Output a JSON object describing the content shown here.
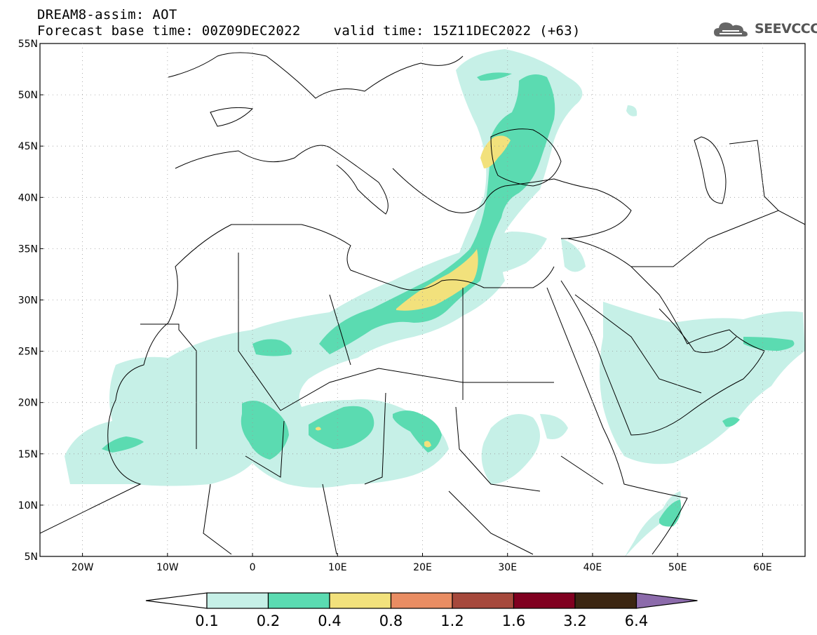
{
  "title": {
    "line1": "DREAM8-assim: AOT",
    "line2": "Forecast base time: 00Z09DEC2022    valid time: 15Z11DEC2022 (+63)"
  },
  "logo": {
    "text": "SEEVCCC",
    "icon": "cloud-icon"
  },
  "map": {
    "lon_range": [
      -25,
      65
    ],
    "lat_range": [
      5,
      55
    ],
    "lat_labels": [
      "55N",
      "50N",
      "45N",
      "40N",
      "35N",
      "30N",
      "25N",
      "20N",
      "15N",
      "10N",
      "5N"
    ],
    "lat_values": [
      55,
      50,
      45,
      40,
      35,
      30,
      25,
      20,
      15,
      10,
      5
    ],
    "lon_labels": [
      "20W",
      "10W",
      "0",
      "10E",
      "20E",
      "30E",
      "40E",
      "50E",
      "60E"
    ],
    "lon_values": [
      -20,
      -10,
      0,
      10,
      20,
      30,
      40,
      50,
      60
    ],
    "grid": "dotted",
    "coastline_color": "#000000"
  },
  "colorbar": {
    "labels": [
      "0.1",
      "0.2",
      "0.4",
      "0.8",
      "1.2",
      "1.6",
      "3.2",
      "6.4"
    ],
    "colors": [
      "#c6f0e7",
      "#5bdbb1",
      "#f2e17c",
      "#e98d63",
      "#a6493c",
      "#800020",
      "#3b2612"
    ],
    "under_color": "#ffffff",
    "over_color": "#8c6bab"
  }
}
